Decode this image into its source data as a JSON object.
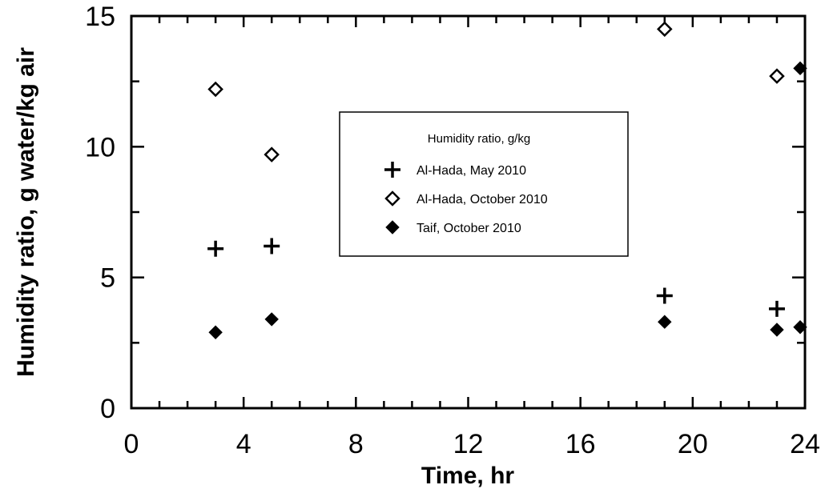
{
  "chart_data": {
    "type": "scatter",
    "title": "",
    "xlabel": "Time, hr",
    "ylabel": "Humidity ratio, g water/kg air",
    "xlim": [
      0,
      24
    ],
    "ylim": [
      0,
      15
    ],
    "x_ticks": [
      0,
      4,
      8,
      12,
      16,
      20,
      24
    ],
    "y_ticks": [
      0,
      5,
      10,
      15
    ],
    "x_minor_step": 1,
    "y_minor_step": 2.5,
    "grid": false,
    "legend": {
      "title": "Humidity ratio, g/kg",
      "placement": "center"
    },
    "series": [
      {
        "name": "Al-Hada, May 2010",
        "marker": "plus",
        "points": [
          [
            3,
            6.1
          ],
          [
            5,
            6.2
          ],
          [
            19,
            4.3
          ],
          [
            23,
            3.8
          ]
        ]
      },
      {
        "name": "Al-Hada, October 2010",
        "marker": "diamond-open",
        "points": [
          [
            3,
            12.2
          ],
          [
            5,
            9.7
          ],
          [
            19,
            14.5
          ],
          [
            23,
            12.7
          ]
        ]
      },
      {
        "name": "Taif, October 2010",
        "marker": "diamond-filled",
        "points": [
          [
            3,
            2.9
          ],
          [
            5,
            3.4
          ],
          [
            19,
            3.3
          ],
          [
            23,
            3.0
          ],
          [
            24,
            3.1
          ],
          [
            24,
            13.0
          ]
        ]
      }
    ]
  }
}
